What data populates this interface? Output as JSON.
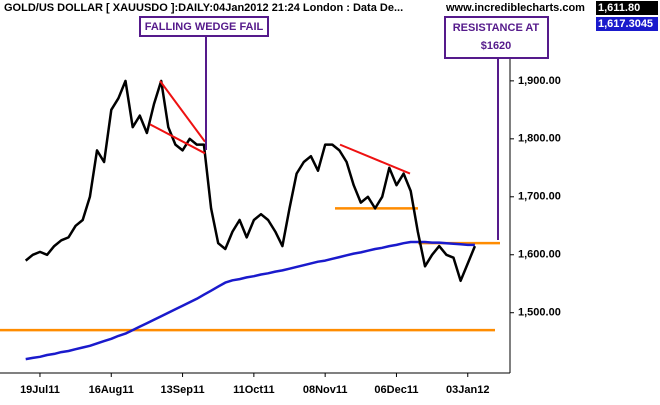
{
  "chart_data": {
    "type": "line",
    "title": "GOLD/US DOLLAR [ XAUUSDO ]:DAILY:04Jan2012 21:24 London : Data De...",
    "source": "www.incrediblecharts.com",
    "last_values": [
      {
        "value": 1611.8,
        "label": "1,611.80",
        "color": "#000000"
      },
      {
        "value": 1617.3045,
        "label": "1,617.3045",
        "color": "#1a1acc"
      }
    ],
    "categories": [
      null,
      null,
      "19Jul11",
      null,
      null,
      null,
      null,
      null,
      null,
      null,
      null,
      null,
      "16Aug11",
      null,
      null,
      null,
      null,
      null,
      null,
      null,
      null,
      null,
      "13Sep11",
      null,
      null,
      null,
      null,
      null,
      null,
      null,
      null,
      null,
      "11Oct11",
      null,
      null,
      null,
      null,
      null,
      null,
      null,
      null,
      null,
      "08Nov11",
      null,
      null,
      null,
      null,
      null,
      null,
      null,
      null,
      null,
      "06Dec11",
      null,
      null,
      null,
      null,
      null,
      null,
      null,
      null,
      null,
      "03Jan12",
      null
    ],
    "series": [
      {
        "color": "#000000",
        "values": [
          1590,
          1600,
          1605,
          1600,
          1615,
          1625,
          1630,
          1650,
          1660,
          1700,
          1780,
          1760,
          1850,
          1870,
          1900,
          1820,
          1840,
          1810,
          1860,
          1900,
          1820,
          1790,
          1780,
          1800,
          1790,
          1790,
          1680,
          1620,
          1610,
          1640,
          1660,
          1630,
          1660,
          1670,
          1660,
          1640,
          1615,
          1680,
          1740,
          1760,
          1770,
          1745,
          1790,
          1790,
          1780,
          1760,
          1720,
          1690,
          1700,
          1680,
          1700,
          1750,
          1720,
          1740,
          1710,
          1640,
          1580,
          1600,
          1615,
          1600,
          1595,
          1555,
          1585,
          1615
        ]
      },
      {
        "color": "#1a1acc",
        "values": [
          1420,
          1422,
          1424,
          1427,
          1429,
          1432,
          1434,
          1437,
          1440,
          1443,
          1447,
          1451,
          1455,
          1460,
          1464,
          1470,
          1476,
          1482,
          1488,
          1494,
          1500,
          1506,
          1512,
          1518,
          1524,
          1531,
          1538,
          1545,
          1552,
          1556,
          1558,
          1561,
          1563,
          1566,
          1568,
          1571,
          1573,
          1576,
          1579,
          1582,
          1585,
          1588,
          1590,
          1593,
          1596,
          1599,
          1602,
          1604,
          1607,
          1610,
          1612,
          1615,
          1617,
          1620,
          1622,
          1622,
          1622,
          1621,
          1621,
          1620,
          1619,
          1618,
          1617,
          1617
        ]
      }
    ],
    "levels": [
      {
        "value": 1470,
        "color": "#ff8c00"
      },
      {
        "value": 1680,
        "color": "#ff8c00"
      },
      {
        "value": 1620,
        "color": "#ff8c00"
      }
    ],
    "trendlines": [
      {
        "values": [
          1900,
          1795
        ],
        "color": "#ee1111"
      },
      {
        "values": [
          1825,
          1775
        ],
        "color": "#ee1111"
      },
      {
        "values": [
          1790,
          1740
        ],
        "color": "#ee1111"
      }
    ],
    "annotations": [
      {
        "text": "FALLING WEDGE FAIL",
        "color": "#551a8b"
      },
      {
        "text": "RESISTANCE AT",
        "text2": "$1620",
        "color": "#551a8b"
      }
    ],
    "ylim": [
      1396,
      2005
    ],
    "yticks": [
      {
        "value": 1500,
        "label": "1,500.00"
      },
      {
        "value": 1600,
        "label": "1,600.00"
      },
      {
        "value": 1700,
        "label": "1,700.00"
      },
      {
        "value": 1800,
        "label": "1,800.00"
      },
      {
        "value": 1900,
        "label": "1,900.00"
      }
    ]
  }
}
